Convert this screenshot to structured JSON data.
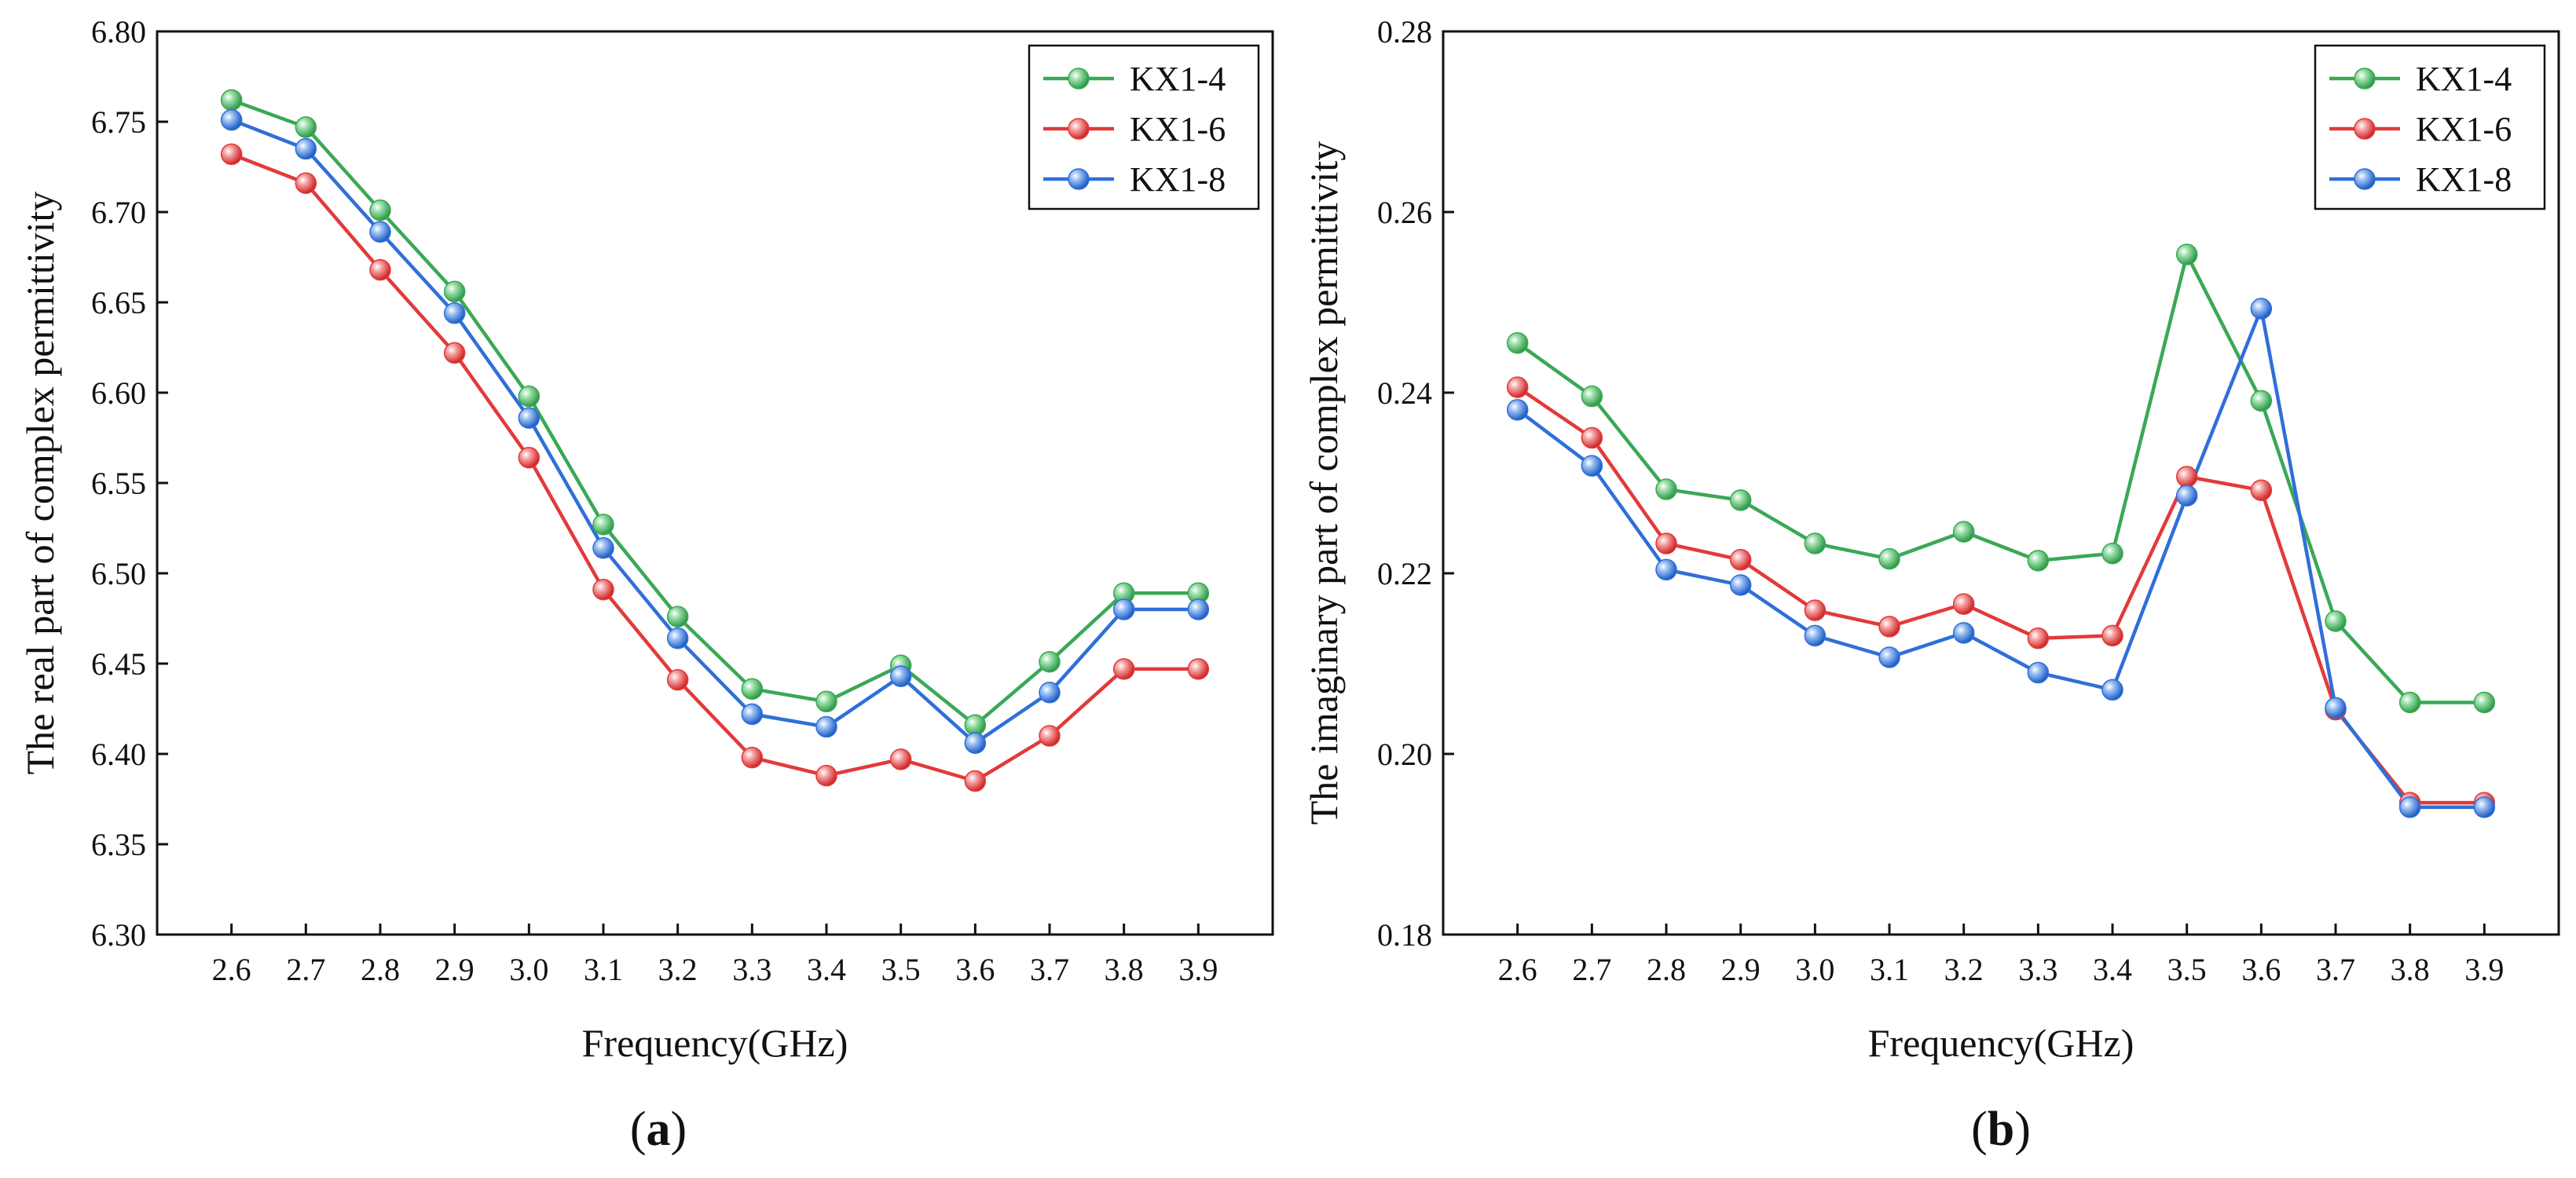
{
  "colors": {
    "KX1-4": "#3aa855",
    "KX1-6": "#e23a3a",
    "KX1-8": "#2f6fd8"
  },
  "chart_data": [
    {
      "type": "line",
      "panel": "(a)",
      "panel_letter": "a",
      "xlabel": "Frequency(GHz)",
      "ylabel": "The real part of complex permittivity",
      "x": [
        2.6,
        2.7,
        2.8,
        2.9,
        3.0,
        3.1,
        3.2,
        3.3,
        3.4,
        3.5,
        3.6,
        3.7,
        3.8,
        3.9
      ],
      "x_tick_labels": [
        "2.6",
        "2.7",
        "2.8",
        "2.9",
        "3.0",
        "3.1",
        "3.2",
        "3.3",
        "3.4",
        "3.5",
        "3.6",
        "3.7",
        "3.8",
        "3.9"
      ],
      "xlim": [
        2.5,
        4.0
      ],
      "ylim": [
        6.3,
        6.8
      ],
      "y_ticks": [
        6.3,
        6.35,
        6.4,
        6.45,
        6.5,
        6.55,
        6.6,
        6.65,
        6.7,
        6.75,
        6.8
      ],
      "y_tick_labels": [
        "6.30",
        "6.35",
        "6.40",
        "6.45",
        "6.50",
        "6.55",
        "6.60",
        "6.65",
        "6.70",
        "6.75",
        "6.80"
      ],
      "legend_position": "top-right",
      "series": [
        {
          "name": "KX1-4",
          "values": [
            6.762,
            6.747,
            6.701,
            6.656,
            6.598,
            6.527,
            6.476,
            6.436,
            6.429,
            6.449,
            6.416,
            6.451,
            6.489,
            6.489
          ]
        },
        {
          "name": "KX1-6",
          "values": [
            6.732,
            6.716,
            6.668,
            6.622,
            6.564,
            6.491,
            6.441,
            6.398,
            6.388,
            6.397,
            6.385,
            6.41,
            6.447,
            6.447
          ]
        },
        {
          "name": "KX1-8",
          "values": [
            6.751,
            6.735,
            6.689,
            6.644,
            6.586,
            6.514,
            6.464,
            6.422,
            6.415,
            6.443,
            6.406,
            6.434,
            6.48,
            6.48
          ]
        }
      ]
    },
    {
      "type": "line",
      "panel": "(b)",
      "panel_letter": "b",
      "xlabel": "Frequency(GHz)",
      "ylabel": "The imaginary part of complex permittivity",
      "x": [
        2.6,
        2.7,
        2.8,
        2.9,
        3.0,
        3.1,
        3.2,
        3.3,
        3.4,
        3.5,
        3.6,
        3.7,
        3.8,
        3.9
      ],
      "x_tick_labels": [
        "2.6",
        "2.7",
        "2.8",
        "2.9",
        "3.0",
        "3.1",
        "3.2",
        "3.3",
        "3.4",
        "3.5",
        "3.6",
        "3.7",
        "3.8",
        "3.9"
      ],
      "xlim": [
        2.5,
        4.0
      ],
      "ylim": [
        0.18,
        0.28
      ],
      "y_ticks": [
        0.18,
        0.2,
        0.22,
        0.24,
        0.26,
        0.28
      ],
      "y_tick_labels": [
        "0.18",
        "0.20",
        "0.22",
        "0.24",
        "0.26",
        "0.28"
      ],
      "legend_position": "top-right",
      "series": [
        {
          "name": "KX1-4",
          "values": [
            0.2455,
            0.2396,
            0.2293,
            0.2281,
            0.2233,
            0.2216,
            0.2246,
            0.2214,
            0.2222,
            0.2553,
            0.2391,
            0.2147,
            0.2057,
            0.2057
          ]
        },
        {
          "name": "KX1-6",
          "values": [
            0.2406,
            0.235,
            0.2233,
            0.2215,
            0.2159,
            0.2141,
            0.2166,
            0.2128,
            0.2131,
            0.2307,
            0.2292,
            0.2049,
            0.1946,
            0.1946
          ]
        },
        {
          "name": "KX1-8",
          "values": [
            0.2381,
            0.2319,
            0.2204,
            0.2187,
            0.2131,
            0.2107,
            0.2134,
            0.209,
            0.2071,
            0.2286,
            0.2493,
            0.2051,
            0.1941,
            0.1941
          ]
        }
      ]
    }
  ]
}
